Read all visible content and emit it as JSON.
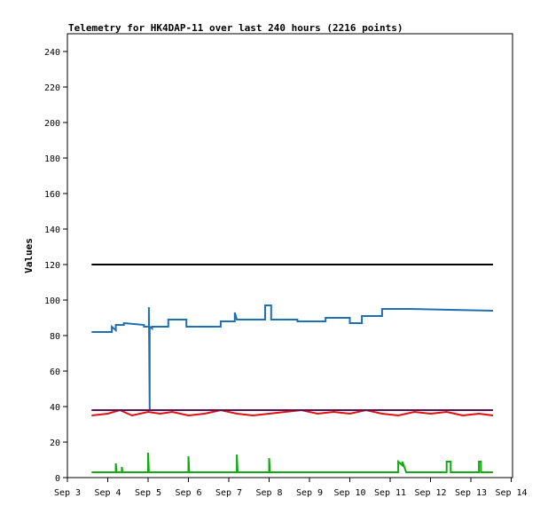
{
  "chart_data": {
    "type": "line",
    "title": "Telemetry for HK4DAP-11 over last 240 hours (2216 points)",
    "xlabel": "",
    "ylabel": "Values",
    "xlim": [
      0,
      10.5
    ],
    "ylim": [
      0,
      250
    ],
    "x_ticks": [
      0,
      1,
      2,
      3,
      4,
      5,
      6,
      7,
      8,
      9,
      10,
      11
    ],
    "x_tick_labels": [
      "Sep 3",
      "Sep 4",
      "Sep 5",
      "Sep 6",
      "Sep 7",
      "Sep 8",
      "Sep 9",
      "Sep 10",
      "Sep 11",
      "Sep 12",
      "Sep 13",
      "Sep 14"
    ],
    "y_ticks": [
      0,
      20,
      40,
      60,
      80,
      100,
      120,
      140,
      160,
      180,
      200,
      220,
      240
    ],
    "grid": false,
    "x_units": "days since Sep 3 00:00",
    "series": [
      {
        "color": "#000000",
        "x": [
          0.6,
          10.55
        ],
        "y": [
          120,
          120
        ]
      },
      {
        "color": "#1f6fb4",
        "x": [
          0.6,
          1.1,
          1.1,
          1.2,
          1.2,
          1.4,
          1.4,
          1.9,
          1.9,
          2.02,
          2.02,
          2.04,
          2.04,
          2.1,
          2.1,
          2.5,
          2.5,
          2.95,
          2.95,
          3.8,
          3.8,
          4.15,
          4.15,
          4.2,
          4.2,
          4.9,
          4.9,
          5.05,
          5.05,
          5.7,
          5.7,
          6.4,
          6.4,
          7.0,
          7.0,
          7.3,
          7.3,
          7.8,
          7.8,
          8.5,
          8.5,
          10.55
        ],
        "y": [
          82,
          82,
          85,
          83,
          86,
          86,
          87,
          86,
          85,
          85,
          96,
          38,
          85,
          84,
          85,
          85,
          89,
          89,
          85,
          85,
          88,
          88,
          93,
          89,
          89,
          89,
          97,
          97,
          89,
          89,
          88,
          88,
          90,
          90,
          87,
          87,
          91,
          91,
          95,
          95,
          95,
          94
        ]
      },
      {
        "color": "#dd1111",
        "x": [
          0.6,
          1.0,
          1.3,
          1.6,
          2.0,
          2.3,
          2.6,
          3.0,
          3.4,
          3.8,
          4.2,
          4.6,
          5.0,
          5.4,
          5.8,
          6.2,
          6.6,
          7.0,
          7.4,
          7.8,
          8.2,
          8.6,
          9.0,
          9.4,
          9.8,
          10.2,
          10.55
        ],
        "y": [
          35,
          36,
          38,
          35,
          37,
          36,
          37,
          35,
          36,
          38,
          36,
          35,
          36,
          37,
          38,
          36,
          37,
          36,
          38,
          36,
          35,
          37,
          36,
          37,
          35,
          36,
          35
        ]
      },
      {
        "color": "#5a1550",
        "x": [
          0.6,
          10.55
        ],
        "y": [
          38,
          38
        ]
      },
      {
        "color": "#11aa11",
        "x": [
          0.6,
          1.2,
          1.2,
          1.22,
          1.35,
          1.35,
          1.37,
          2.0,
          2.0,
          2.02,
          3.0,
          3.0,
          3.02,
          4.2,
          4.2,
          4.22,
          5.0,
          5.0,
          5.02,
          8.2,
          8.2,
          8.3,
          8.3,
          8.4,
          9.4,
          9.4,
          9.5,
          9.5,
          10.2,
          10.2,
          10.25,
          10.25,
          10.55
        ],
        "y": [
          3,
          3,
          8,
          3,
          3,
          6,
          3,
          3,
          14,
          3,
          3,
          12,
          3,
          3,
          13,
          3,
          3,
          11,
          3,
          3,
          9,
          7,
          9,
          3,
          3,
          9,
          9,
          3,
          3,
          9,
          9,
          3,
          3
        ]
      }
    ]
  }
}
